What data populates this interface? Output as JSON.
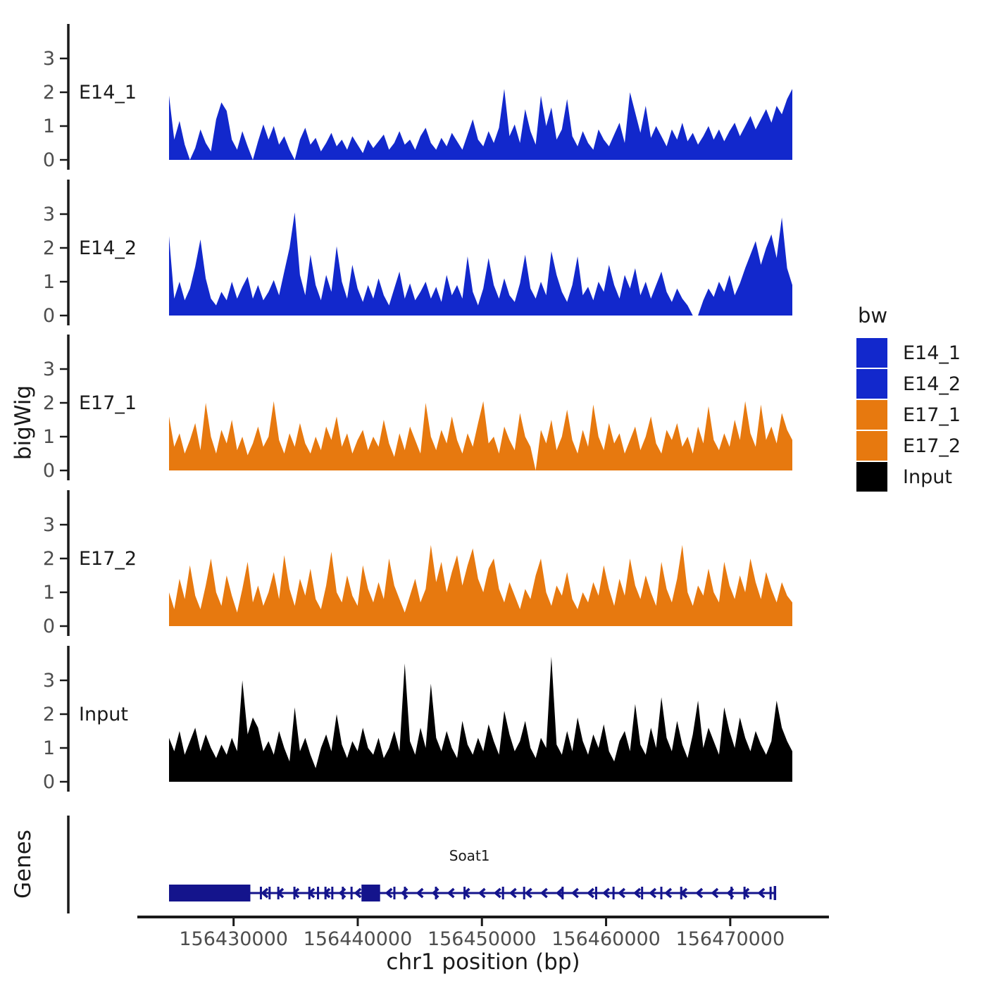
{
  "axes": {
    "y_title": "bigWig",
    "x_title": "chr1 position (bp)",
    "y_ticks": [
      0,
      1,
      2,
      3
    ],
    "x_ticks_bp": [
      156430000,
      156440000,
      156450000,
      156460000,
      156470000
    ],
    "x_tick_labels": [
      "156430000",
      "156440000",
      "156450000",
      "156460000",
      "156470000"
    ]
  },
  "legend": {
    "title": "bw",
    "items": [
      {
        "label": "E14_1",
        "color": "#1228CC"
      },
      {
        "label": "E14_2",
        "color": "#1228CC"
      },
      {
        "label": "E17_1",
        "color": "#E7790F"
      },
      {
        "label": "E17_2",
        "color": "#E7790F"
      },
      {
        "label": "Input",
        "color": "#000000"
      }
    ]
  },
  "gene_panel": {
    "title": "Genes",
    "gene": {
      "label": "Soat1",
      "strand": "-",
      "color": "#14148C",
      "start_bp": 156424800,
      "end_bp": 156473600,
      "label_bp": 156449000,
      "thick_exons": [
        [
          156424800,
          156431350
        ],
        [
          156440300,
          156441800
        ]
      ],
      "exon_marks_bp": [
        156432200,
        156432900,
        156433600,
        156434900,
        156436100,
        156436800,
        156437400,
        156437950,
        156438800,
        156439500,
        156442950,
        156443800,
        156446300,
        156448600,
        156451700,
        156453400,
        156456500,
        156459200,
        156460600,
        156462900,
        156464450,
        156466050,
        156470100,
        156471150,
        156473250
      ],
      "arrow_start_bp": 156432400,
      "arrow_step_bp": 1250,
      "arrow_skip_ranges": [
        [
          156440200,
          156441900
        ]
      ]
    }
  },
  "chart_data": {
    "type": "area",
    "title": "",
    "xlabel": "chr1 position (bp)",
    "ylabel": "bigWig",
    "x_range_bp": [
      156424800,
      156475000
    ],
    "ylim": [
      0,
      3.9
    ],
    "y_ticks": [
      0,
      1,
      2,
      3
    ],
    "x_ticks_bp": [
      156430000,
      156440000,
      156450000,
      156460000,
      156470000
    ],
    "legend_title": "bw",
    "grid": false,
    "tracks": [
      {
        "name": "E14_1",
        "color": "#1228CC",
        "values": [
          1.9,
          0.6,
          1.15,
          0.45,
          0,
          0.35,
          0.9,
          0.5,
          0.25,
          1.2,
          1.7,
          1.45,
          0.6,
          0.3,
          0.85,
          0.4,
          0,
          0.55,
          1.05,
          0.6,
          1.0,
          0.45,
          0.7,
          0.3,
          0,
          0.6,
          0.95,
          0.45,
          0.65,
          0.25,
          0.5,
          0.8,
          0.4,
          0.6,
          0.3,
          0.7,
          0.45,
          0.2,
          0.6,
          0.35,
          0.55,
          0.75,
          0.3,
          0.5,
          0.85,
          0.45,
          0.6,
          0.3,
          0.7,
          0.95,
          0.5,
          0.3,
          0.65,
          0.4,
          0.8,
          0.55,
          0.3,
          0.75,
          1.2,
          0.6,
          0.4,
          0.85,
          0.5,
          0.95,
          2.1,
          0.7,
          1.05,
          0.5,
          1.5,
          0.85,
          0.45,
          1.9,
          1.0,
          1.55,
          0.6,
          0.9,
          1.8,
          0.7,
          0.4,
          0.85,
          0.5,
          0.3,
          0.9,
          0.6,
          0.4,
          0.75,
          1.1,
          0.5,
          2.0,
          1.4,
          0.8,
          1.6,
          0.65,
          1.0,
          0.7,
          0.4,
          0.9,
          0.6,
          1.1,
          0.55,
          0.8,
          0.45,
          0.7,
          1.0,
          0.6,
          0.9,
          0.55,
          0.85,
          1.1,
          0.7,
          1.0,
          1.3,
          0.9,
          1.2,
          1.5,
          1.1,
          1.6,
          1.35,
          1.8,
          2.1
        ]
      },
      {
        "name": "E14_2",
        "color": "#1228CC",
        "values": [
          2.35,
          0.5,
          1.0,
          0.45,
          0.8,
          1.45,
          2.25,
          1.1,
          0.5,
          0.3,
          0.7,
          0.45,
          1.0,
          0.5,
          0.85,
          1.15,
          0.5,
          0.9,
          0.45,
          0.7,
          1.05,
          0.6,
          1.3,
          2.0,
          3.05,
          1.2,
          0.6,
          1.8,
          0.9,
          0.45,
          1.2,
          0.7,
          2.05,
          1.0,
          0.5,
          1.5,
          0.8,
          0.4,
          0.9,
          0.5,
          1.1,
          0.6,
          0.3,
          0.8,
          1.3,
          0.5,
          0.95,
          0.45,
          0.7,
          1.0,
          0.5,
          0.85,
          0.4,
          1.2,
          0.6,
          0.9,
          0.5,
          1.75,
          0.7,
          0.3,
          0.8,
          1.7,
          0.9,
          0.5,
          1.1,
          0.6,
          0.4,
          0.95,
          1.8,
          0.8,
          0.5,
          1.0,
          0.6,
          1.9,
          1.2,
          0.7,
          0.4,
          0.9,
          1.75,
          0.6,
          0.85,
          0.45,
          1.0,
          0.7,
          1.5,
          0.9,
          0.5,
          1.2,
          0.8,
          1.4,
          0.6,
          1.0,
          0.5,
          0.9,
          1.3,
          0.7,
          0.4,
          0.8,
          0.5,
          0.3,
          0,
          0,
          0.45,
          0.8,
          0.55,
          1.0,
          0.7,
          1.2,
          0.6,
          0.95,
          1.4,
          1.8,
          2.2,
          1.5,
          2.0,
          2.4,
          1.7,
          2.9,
          1.4,
          0.9
        ]
      },
      {
        "name": "E17_1",
        "color": "#E7790F",
        "values": [
          1.6,
          0.7,
          1.1,
          0.5,
          0.9,
          1.4,
          0.6,
          2.0,
          1.0,
          0.5,
          1.2,
          0.8,
          1.5,
          0.6,
          1.0,
          0.45,
          0.8,
          1.3,
          0.7,
          1.0,
          2.05,
          0.9,
          0.5,
          1.1,
          0.7,
          1.4,
          0.8,
          0.5,
          1.0,
          0.6,
          1.3,
          0.9,
          1.6,
          0.7,
          1.1,
          0.5,
          0.9,
          1.2,
          0.6,
          1.0,
          0.7,
          1.5,
          0.8,
          0.4,
          1.1,
          0.6,
          1.3,
          0.9,
          0.5,
          2.0,
          1.0,
          0.6,
          1.2,
          0.8,
          1.6,
          0.9,
          0.5,
          1.1,
          0.7,
          1.4,
          2.05,
          0.8,
          1.0,
          0.5,
          1.3,
          0.9,
          0.6,
          1.7,
          1.0,
          0.7,
          0,
          1.2,
          0.8,
          1.5,
          0.6,
          1.0,
          1.8,
          0.9,
          0.5,
          1.2,
          0.7,
          1.95,
          1.0,
          0.6,
          1.4,
          0.8,
          1.1,
          0.5,
          0.9,
          1.3,
          0.6,
          1.0,
          1.6,
          0.8,
          0.5,
          1.2,
          0.9,
          1.4,
          0.7,
          1.0,
          0.5,
          1.3,
          0.8,
          1.9,
          0.9,
          0.6,
          1.1,
          0.7,
          1.5,
          0.9,
          2.05,
          1.1,
          0.7,
          1.95,
          0.9,
          1.3,
          0.8,
          1.7,
          1.2,
          0.9
        ]
      },
      {
        "name": "E17_2",
        "color": "#E7790F",
        "values": [
          1.0,
          0.5,
          1.4,
          0.8,
          1.8,
          0.9,
          0.5,
          1.2,
          2.0,
          1.0,
          0.6,
          1.5,
          0.9,
          0.4,
          1.1,
          1.9,
          0.7,
          1.2,
          0.6,
          1.0,
          1.6,
          0.8,
          2.1,
          1.1,
          0.6,
          1.4,
          0.9,
          1.7,
          0.8,
          0.5,
          1.2,
          2.2,
          1.0,
          0.7,
          1.5,
          0.9,
          0.6,
          1.8,
          1.1,
          0.7,
          1.3,
          0.8,
          2.0,
          1.2,
          0.8,
          0.4,
          0.9,
          1.4,
          0.7,
          1.1,
          2.4,
          1.3,
          1.9,
          1.0,
          1.6,
          2.1,
          1.2,
          1.8,
          2.3,
          1.4,
          1.0,
          1.7,
          2.0,
          1.1,
          0.7,
          1.3,
          0.9,
          0.5,
          1.1,
          0.8,
          1.5,
          2.0,
          1.0,
          0.6,
          1.2,
          0.9,
          1.6,
          0.8,
          0.5,
          1.0,
          0.7,
          1.3,
          0.9,
          1.8,
          1.1,
          0.6,
          1.4,
          0.9,
          2.0,
          1.2,
          0.8,
          1.5,
          1.0,
          0.6,
          1.9,
          1.1,
          0.7,
          1.4,
          2.4,
          1.0,
          0.6,
          1.2,
          0.9,
          1.7,
          1.0,
          0.7,
          1.9,
          1.2,
          0.8,
          1.5,
          1.0,
          2.0,
          1.3,
          0.8,
          1.6,
          1.1,
          0.7,
          1.3,
          0.9,
          0.7
        ]
      },
      {
        "name": "Input",
        "color": "#000000",
        "values": [
          1.3,
          0.9,
          1.5,
          0.8,
          1.2,
          1.6,
          0.9,
          1.4,
          1.0,
          0.7,
          1.1,
          0.8,
          1.3,
          0.9,
          3.0,
          1.4,
          1.9,
          1.6,
          0.9,
          1.2,
          0.8,
          1.5,
          1.0,
          0.6,
          2.2,
          0.9,
          1.3,
          0.8,
          0.4,
          1.0,
          1.4,
          0.9,
          2.0,
          1.1,
          0.7,
          1.2,
          0.9,
          1.6,
          1.0,
          0.8,
          1.3,
          0.7,
          1.0,
          1.5,
          0.9,
          3.5,
          1.2,
          0.8,
          1.6,
          1.0,
          2.9,
          1.3,
          0.9,
          1.5,
          1.0,
          0.7,
          1.8,
          1.1,
          0.8,
          1.3,
          0.9,
          1.7,
          1.2,
          0.8,
          2.1,
          1.4,
          0.9,
          1.2,
          1.8,
          1.0,
          0.7,
          1.3,
          1.0,
          3.7,
          1.1,
          0.8,
          1.5,
          0.9,
          1.9,
          1.2,
          0.8,
          1.4,
          1.0,
          1.7,
          0.9,
          0.6,
          1.2,
          1.5,
          0.9,
          2.3,
          1.1,
          0.8,
          1.6,
          1.0,
          2.5,
          1.3,
          0.9,
          1.8,
          1.1,
          0.7,
          1.4,
          2.4,
          1.0,
          1.6,
          1.2,
          0.8,
          2.2,
          1.5,
          1.0,
          1.9,
          1.3,
          0.9,
          1.5,
          1.1,
          0.8,
          1.2,
          2.4,
          1.6,
          1.2,
          0.9
        ]
      }
    ]
  }
}
